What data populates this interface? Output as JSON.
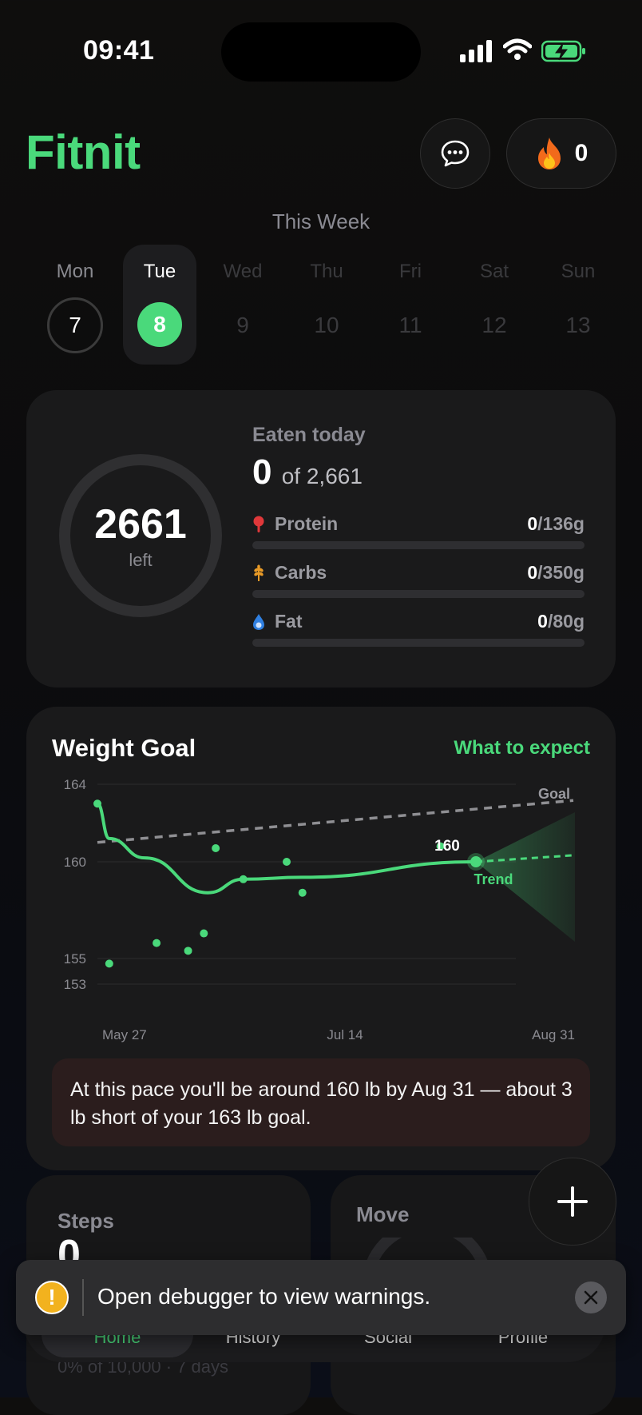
{
  "status_bar": {
    "time": "09:41",
    "icons": [
      "cellular-signal-icon",
      "wifi-icon",
      "battery-charging-icon"
    ]
  },
  "header": {
    "app_title": "Fitnit",
    "streak_count": "0",
    "chat_icon": "chat-bubble-icon",
    "streak_icon": "fire-icon"
  },
  "week": {
    "title": "This Week",
    "days": [
      {
        "name": "Mon",
        "num": "7",
        "state": "past"
      },
      {
        "name": "Tue",
        "num": "8",
        "state": "selected"
      },
      {
        "name": "Wed",
        "num": "9",
        "state": "future"
      },
      {
        "name": "Thu",
        "num": "10",
        "state": "future"
      },
      {
        "name": "Fri",
        "num": "11",
        "state": "future"
      },
      {
        "name": "Sat",
        "num": "12",
        "state": "future"
      },
      {
        "name": "Sun",
        "num": "13",
        "state": "future"
      }
    ]
  },
  "nutrition": {
    "remaining": "2661",
    "remaining_label": "left",
    "eaten_label": "Eaten today",
    "eaten_value": "0",
    "eaten_of": "of 2,661",
    "macros": [
      {
        "name": "Protein",
        "current": "0",
        "target": "/136g",
        "icon": "protein-pin-icon",
        "progress": 0
      },
      {
        "name": "Carbs",
        "current": "0",
        "target": "/350g",
        "icon": "wheat-icon",
        "progress": 0
      },
      {
        "name": "Fat",
        "current": "0",
        "target": "/80g",
        "icon": "oil-drop-icon",
        "progress": 0
      }
    ]
  },
  "weight_goal": {
    "title": "Weight Goal",
    "link": "What to expect",
    "note": "At this pace you'll be around 160 lb by Aug 31 — about 3 lb short of your 163 lb goal."
  },
  "chart_data": {
    "type": "scatter",
    "y_ticks": [
      "164",
      "160",
      "155",
      "153"
    ],
    "x_ticks": [
      "May 27",
      "Jul 14",
      "Aug 31"
    ],
    "ylim": [
      153,
      164
    ],
    "x_range": [
      "2025-05-27",
      "2025-08-31"
    ],
    "goal_label": "Goal",
    "trend_label": "Trend",
    "projected_label": "160",
    "goal_line": [
      {
        "x": "May 27",
        "y": 161
      },
      {
        "x": "Aug 31",
        "y": 163
      }
    ],
    "points": [
      {
        "x": "May 27",
        "y": 163
      },
      {
        "x": "May 30",
        "y": 154.6
      },
      {
        "x": "Jun 11",
        "y": 155.8
      },
      {
        "x": "Jun 19",
        "y": 155.4
      },
      {
        "x": "Jun 23",
        "y": 156.3
      },
      {
        "x": "Jun 26",
        "y": 160.7
      },
      {
        "x": "Jul 3",
        "y": 159.1
      },
      {
        "x": "Jul 14",
        "y": 160
      },
      {
        "x": "Jul 18",
        "y": 158.4
      },
      {
        "x": "Aug 22",
        "y": 160.8
      }
    ],
    "trend": [
      {
        "x": "May 27",
        "y": 163
      },
      {
        "x": "May 30",
        "y": 161.2
      },
      {
        "x": "Jun 8",
        "y": 160.2
      },
      {
        "x": "Jun 24",
        "y": 158.4
      },
      {
        "x": "Jul 3",
        "y": 159.1
      },
      {
        "x": "Jul 18",
        "y": 159.2
      },
      {
        "x": "Aug 31",
        "y": 160
      }
    ]
  },
  "steps": {
    "title": "Steps",
    "value": "0",
    "sub": "0% of 10,000 · 7 days"
  },
  "move": {
    "title": "Move"
  },
  "fab_icon": "plus-icon",
  "tabs": [
    {
      "label": "Home",
      "active": true
    },
    {
      "label": "History",
      "active": false
    },
    {
      "label": "Social",
      "active": false
    },
    {
      "label": "Profile",
      "active": false
    }
  ],
  "toast": {
    "text": "Open debugger to view warnings.",
    "icon": "warning-icon",
    "close_icon": "close-icon"
  },
  "colors": {
    "accent": "#4ad97b",
    "card": "#1a1a1b",
    "warning": "#f2b21e"
  }
}
